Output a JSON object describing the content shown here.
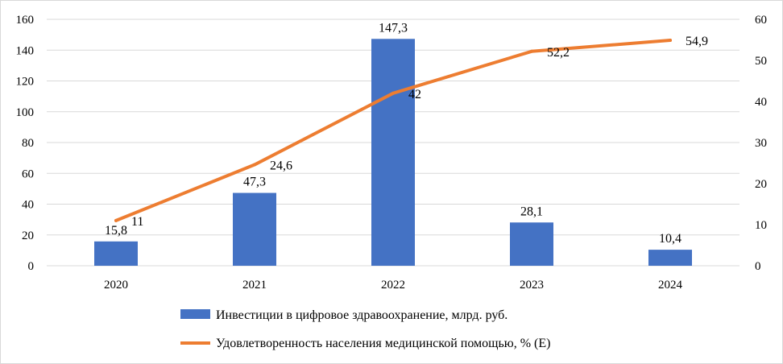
{
  "chart_data": {
    "type": "bar+line",
    "categories": [
      "2020",
      "2021",
      "2022",
      "2023",
      "2024"
    ],
    "bar_series": {
      "name": "Инвестиции в цифровое здравоохранение, млрд. руб.",
      "values": [
        15.8,
        47.3,
        147.3,
        28.1,
        10.4
      ],
      "labels": [
        "15,8",
        "47,3",
        "147,3",
        "28,1",
        "10,4"
      ],
      "color": "#4472C4",
      "axis": "left"
    },
    "line_series": {
      "name": "Удовлетворенность населения медицинской помощью, % (Е)",
      "values": [
        11,
        24.6,
        42,
        52.2,
        54.9
      ],
      "labels": [
        "11",
        "24,6",
        "42",
        "52,2",
        "54,9"
      ],
      "color": "#ED7D31",
      "axis": "right"
    },
    "y_left": {
      "min": 0,
      "max": 160,
      "step": 20,
      "ticks": [
        "0",
        "20",
        "40",
        "60",
        "80",
        "100",
        "120",
        "140",
        "160"
      ]
    },
    "y_right": {
      "min": 0,
      "max": 60,
      "step": 10,
      "ticks": [
        "0",
        "10",
        "20",
        "30",
        "40",
        "50",
        "60"
      ]
    },
    "grid": true,
    "legend_position": "bottom"
  }
}
